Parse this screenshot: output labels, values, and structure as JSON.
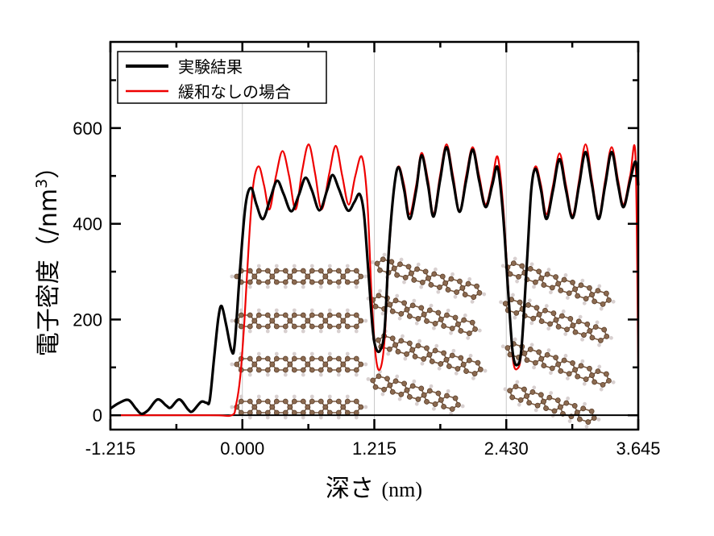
{
  "chart_data": {
    "type": "line",
    "title": "",
    "xlabel": "深さ (nm)",
    "ylabel": "電子密度（/nm³）",
    "ylabel_main": "電子密度（/nm",
    "ylabel_sup": "3",
    "ylabel_close": "）",
    "xlabel_main": "深さ ",
    "xlabel_unit": "(nm)",
    "xlim": [
      -1.215,
      3.645
    ],
    "ylim": [
      -30,
      780
    ],
    "x_ticks": [
      -1.215,
      0.0,
      1.215,
      2.43,
      3.645
    ],
    "x_tick_labels": [
      "-1.215",
      "0.000",
      "1.215",
      "2.430",
      "3.645"
    ],
    "x_minor_ticks": [
      -0.6075,
      0.6075,
      1.8225,
      3.0375
    ],
    "y_ticks": [
      0,
      200,
      400,
      600
    ],
    "y_tick_labels": [
      "0",
      "200",
      "400",
      "600"
    ],
    "y_minor_ticks": [
      100,
      300,
      500,
      700
    ],
    "vertical_gridlines": [
      0.0,
      1.215,
      2.43
    ],
    "legend_position": "upper left",
    "series": [
      {
        "name": "実験結果",
        "color": "#000000",
        "line_width": 3.2,
        "points": [
          [
            -1.215,
            14
          ],
          [
            -1.14,
            25
          ],
          [
            -1.05,
            32
          ],
          [
            -0.98,
            14
          ],
          [
            -0.93,
            3
          ],
          [
            -0.87,
            10
          ],
          [
            -0.78,
            33
          ],
          [
            -0.7,
            20
          ],
          [
            -0.66,
            16
          ],
          [
            -0.58,
            33
          ],
          [
            -0.5,
            12
          ],
          [
            -0.46,
            8
          ],
          [
            -0.38,
            28
          ],
          [
            -0.33,
            26
          ],
          [
            -0.3,
            32
          ],
          [
            -0.26,
            120
          ],
          [
            -0.22,
            205
          ],
          [
            -0.19,
            228
          ],
          [
            -0.15,
            190
          ],
          [
            -0.1,
            135
          ],
          [
            -0.07,
            150
          ],
          [
            -0.02,
            310
          ],
          [
            0.03,
            440
          ],
          [
            0.08,
            475
          ],
          [
            0.13,
            440
          ],
          [
            0.19,
            410
          ],
          [
            0.26,
            455
          ],
          [
            0.32,
            490
          ],
          [
            0.38,
            462
          ],
          [
            0.45,
            426
          ],
          [
            0.52,
            460
          ],
          [
            0.58,
            496
          ],
          [
            0.64,
            470
          ],
          [
            0.71,
            428
          ],
          [
            0.78,
            470
          ],
          [
            0.83,
            502
          ],
          [
            0.89,
            472
          ],
          [
            0.97,
            428
          ],
          [
            1.03,
            445
          ],
          [
            1.08,
            462
          ],
          [
            1.12,
            420
          ],
          [
            1.16,
            300
          ],
          [
            1.2,
            180
          ],
          [
            1.23,
            140
          ],
          [
            1.27,
            136
          ],
          [
            1.31,
            180
          ],
          [
            1.35,
            350
          ],
          [
            1.4,
            480
          ],
          [
            1.44,
            518
          ],
          [
            1.49,
            470
          ],
          [
            1.54,
            410
          ],
          [
            1.6,
            470
          ],
          [
            1.65,
            543
          ],
          [
            1.71,
            480
          ],
          [
            1.76,
            415
          ],
          [
            1.82,
            490
          ],
          [
            1.88,
            560
          ],
          [
            1.94,
            490
          ],
          [
            2.0,
            425
          ],
          [
            2.06,
            490
          ],
          [
            2.12,
            555
          ],
          [
            2.18,
            490
          ],
          [
            2.24,
            435
          ],
          [
            2.3,
            480
          ],
          [
            2.35,
            518
          ],
          [
            2.4,
            420
          ],
          [
            2.45,
            250
          ],
          [
            2.49,
            130
          ],
          [
            2.53,
            105
          ],
          [
            2.57,
            140
          ],
          [
            2.62,
            320
          ],
          [
            2.66,
            470
          ],
          [
            2.7,
            515
          ],
          [
            2.75,
            470
          ],
          [
            2.8,
            410
          ],
          [
            2.86,
            470
          ],
          [
            2.92,
            535
          ],
          [
            2.98,
            470
          ],
          [
            3.04,
            412
          ],
          [
            3.1,
            480
          ],
          [
            3.16,
            550
          ],
          [
            3.22,
            480
          ],
          [
            3.28,
            410
          ],
          [
            3.34,
            480
          ],
          [
            3.4,
            550
          ],
          [
            3.46,
            480
          ],
          [
            3.51,
            435
          ],
          [
            3.57,
            490
          ],
          [
            3.62,
            530
          ],
          [
            3.645,
            480
          ]
        ]
      },
      {
        "name": "緩和なしの場合",
        "color": "#ee0000",
        "line_width": 2.2,
        "points": [
          [
            -1.215,
            0
          ],
          [
            -0.3,
            0
          ],
          [
            -0.1,
            0
          ],
          [
            -0.06,
            20
          ],
          [
            -0.02,
            80
          ],
          [
            0.02,
            200
          ],
          [
            0.06,
            360
          ],
          [
            0.1,
            480
          ],
          [
            0.15,
            520
          ],
          [
            0.2,
            480
          ],
          [
            0.25,
            430
          ],
          [
            0.31,
            500
          ],
          [
            0.37,
            552
          ],
          [
            0.43,
            500
          ],
          [
            0.49,
            430
          ],
          [
            0.55,
            510
          ],
          [
            0.61,
            566
          ],
          [
            0.67,
            505
          ],
          [
            0.73,
            430
          ],
          [
            0.8,
            505
          ],
          [
            0.86,
            563
          ],
          [
            0.92,
            500
          ],
          [
            0.98,
            440
          ],
          [
            1.04,
            500
          ],
          [
            1.1,
            540
          ],
          [
            1.15,
            450
          ],
          [
            1.19,
            250
          ],
          [
            1.23,
            120
          ],
          [
            1.27,
            97
          ],
          [
            1.31,
            160
          ],
          [
            1.35,
            340
          ],
          [
            1.4,
            480
          ],
          [
            1.44,
            520
          ],
          [
            1.49,
            480
          ],
          [
            1.54,
            420
          ],
          [
            1.6,
            480
          ],
          [
            1.65,
            548
          ],
          [
            1.71,
            490
          ],
          [
            1.76,
            420
          ],
          [
            1.82,
            500
          ],
          [
            1.88,
            566
          ],
          [
            1.94,
            500
          ],
          [
            2.0,
            427
          ],
          [
            2.06,
            500
          ],
          [
            2.12,
            560
          ],
          [
            2.18,
            500
          ],
          [
            2.24,
            440
          ],
          [
            2.3,
            490
          ],
          [
            2.35,
            540
          ],
          [
            2.4,
            440
          ],
          [
            2.45,
            260
          ],
          [
            2.49,
            120
          ],
          [
            2.53,
            97
          ],
          [
            2.57,
            135
          ],
          [
            2.62,
            320
          ],
          [
            2.66,
            470
          ],
          [
            2.7,
            520
          ],
          [
            2.75,
            480
          ],
          [
            2.8,
            420
          ],
          [
            2.86,
            480
          ],
          [
            2.92,
            547
          ],
          [
            2.98,
            480
          ],
          [
            3.04,
            417
          ],
          [
            3.1,
            490
          ],
          [
            3.16,
            566
          ],
          [
            3.22,
            490
          ],
          [
            3.28,
            415
          ],
          [
            3.34,
            490
          ],
          [
            3.4,
            560
          ],
          [
            3.46,
            490
          ],
          [
            3.51,
            440
          ],
          [
            3.57,
            500
          ],
          [
            3.62,
            540
          ],
          [
            3.645,
            100
          ]
        ]
      }
    ],
    "annotations": [
      {
        "type": "molecule-image",
        "description": "graphene-like molecular layers, flat stacking",
        "x_range": [
          -0.03,
          1.215
        ]
      },
      {
        "type": "molecule-image",
        "description": "tilted molecular layers",
        "x_range": [
          1.215,
          2.43
        ]
      },
      {
        "type": "molecule-image",
        "description": "tilted molecular layers",
        "x_range": [
          2.43,
          3.645
        ]
      }
    ]
  },
  "legend": {
    "items": [
      {
        "label": "実験結果",
        "color": "#000000"
      },
      {
        "label": "緩和なしの場合",
        "color": "#ee0000"
      }
    ]
  },
  "colors": {
    "experiment": "#000000",
    "unrelaxed": "#ee0000",
    "molecule_bond": "#7a5a40",
    "molecule_atom": "#8b6a50",
    "hydrogen": "#d8d0d0",
    "gridline": "#c8c8c8"
  }
}
